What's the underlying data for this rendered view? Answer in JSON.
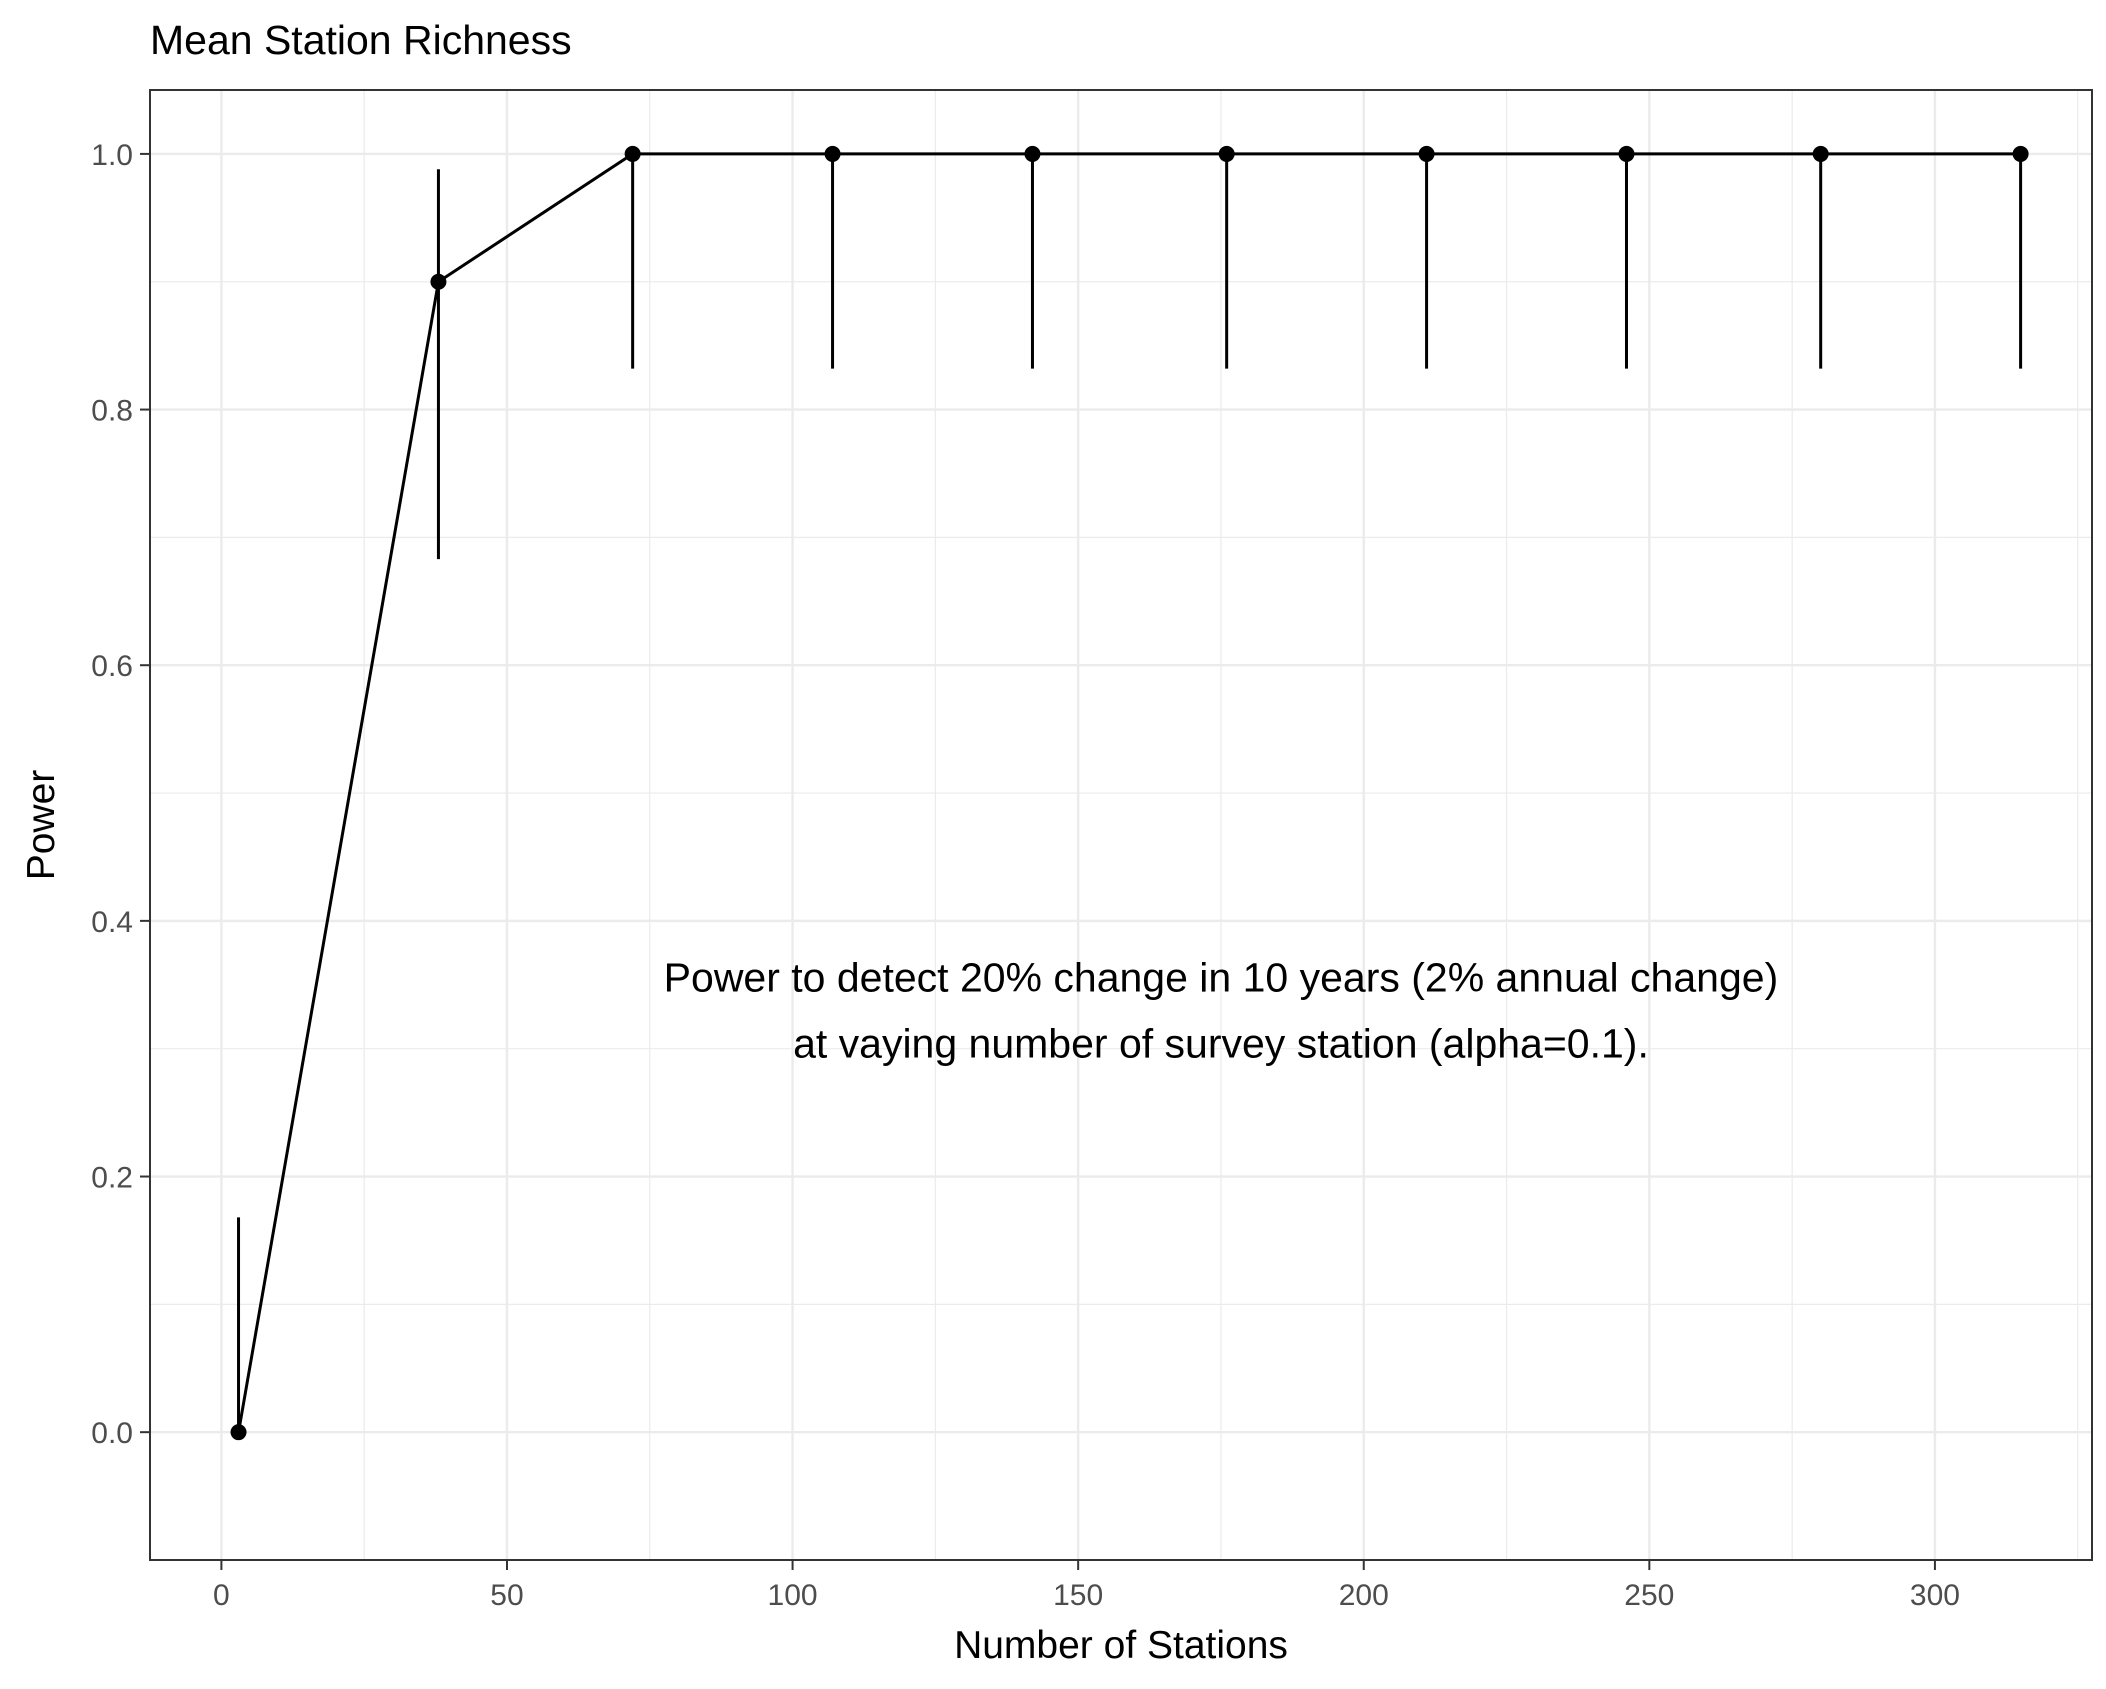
{
  "chart_data": {
    "type": "line",
    "title": "Mean Station Richness",
    "xlabel": "Number of Stations",
    "ylabel": "Power",
    "xlim": [
      -12.5,
      327.5
    ],
    "ylim": [
      -0.1,
      1.05
    ],
    "x_ticks": [
      0,
      50,
      100,
      150,
      200,
      250,
      300
    ],
    "y_ticks": [
      0.0,
      0.2,
      0.4,
      0.6,
      0.8,
      1.0
    ],
    "x_tick_labels": [
      "0",
      "50",
      "100",
      "150",
      "200",
      "250",
      "300"
    ],
    "y_tick_labels": [
      "0.0",
      "0.2",
      "0.4",
      "0.6",
      "0.8",
      "1.0"
    ],
    "grid": true,
    "legend": "none",
    "series": [
      {
        "x": [
          3,
          38,
          72,
          107,
          142,
          176,
          211,
          246,
          280,
          315
        ],
        "y": [
          0.0,
          0.9,
          1.0,
          1.0,
          1.0,
          1.0,
          1.0,
          1.0,
          1.0,
          1.0
        ],
        "lower": [
          0.0,
          0.683,
          0.832,
          0.832,
          0.832,
          0.832,
          0.832,
          0.832,
          0.832,
          0.832
        ],
        "upper": [
          0.168,
          0.988,
          1.0,
          1.0,
          1.0,
          1.0,
          1.0,
          1.0,
          1.0,
          1.0
        ]
      }
    ],
    "annotation": {
      "x": 175,
      "y": 0.33,
      "lines": [
        "Power to detect 20% change in 10 years (2% annual change)",
        "at vaying number of survey station (alpha=0.1)."
      ]
    },
    "colors": {
      "line": "#000000",
      "grid": "#ebebeb",
      "panel_border": "#333333",
      "background": "#ffffff"
    }
  }
}
